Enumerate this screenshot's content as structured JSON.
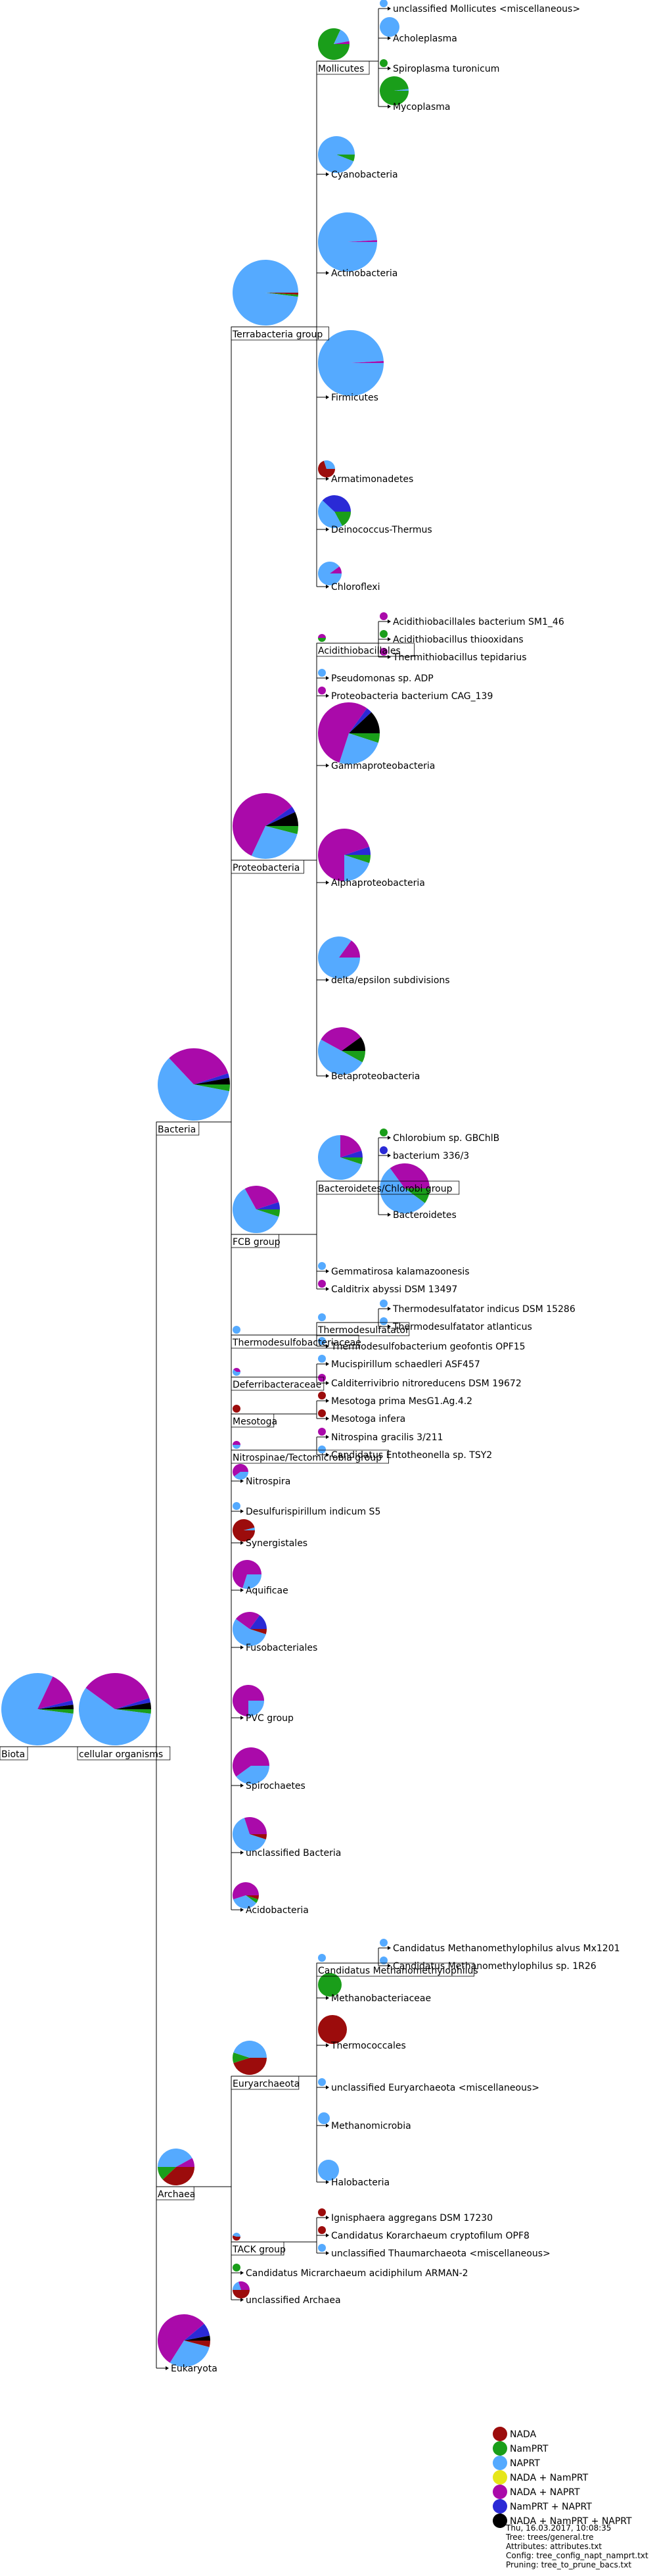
{
  "categories": [
    {
      "key": "nada",
      "name": "NADA",
      "color": "#9c0c0c"
    },
    {
      "key": "namprt",
      "name": "NamPRT",
      "color": "#1a9e1a"
    },
    {
      "key": "naprt",
      "name": "NAPRT",
      "color": "#55aaff"
    },
    {
      "key": "nada_namprt",
      "name": "NADA + NamPRT",
      "color": "#e6e619"
    },
    {
      "key": "nada_naprt",
      "name": "NADA + NAPRT",
      "color": "#aa0aaa"
    },
    {
      "key": "namprt_naprt",
      "name": "NamPRT + NAPRT",
      "color": "#2a2ad6"
    },
    {
      "key": "all3",
      "name": "NADA + NamPRT + NAPRT",
      "color": "#000000"
    }
  ],
  "meta": [
    "Thu, 16.03.2017, 10:08:35",
    "Tree: trees/general.tre",
    "Attributes: attributes.txt",
    "Config: tree_config_napt_namprt.txt",
    "Pruning: tree_to_prune_bacs.txt"
  ],
  "nodes": [
    {
      "id": "biota",
      "label": "Biota",
      "parent": null,
      "row": 2656,
      "depth": 0,
      "share": {
        "naprt": 0.8,
        "nada_naprt": 0.14,
        "namprt": 0.02,
        "namprt_naprt": 0.02,
        "all3": 0.02
      }
    },
    {
      "id": "cellular",
      "label": "cellular organisms",
      "parent": "biota",
      "row": 2656,
      "depth": 1,
      "share": {
        "naprt": 0.58,
        "nada_naprt": 0.35,
        "namprt": 0.02,
        "namprt_naprt": 0.02,
        "all3": 0.03
      }
    },
    {
      "id": "bacteria",
      "label": "Bacteria",
      "parent": "cellular",
      "row": 1706,
      "depth": 2,
      "share": {
        "naprt": 0.6,
        "nada_naprt": 0.32,
        "namprt": 0.03,
        "namprt_naprt": 0.02,
        "all3": 0.03
      }
    },
    {
      "id": "archaea",
      "label": "Archaea",
      "parent": "cellular",
      "row": 3325,
      "depth": 2,
      "share": {
        "nada": 0.38,
        "naprt": 0.42,
        "namprt": 0.12,
        "nada_naprt": 0.08
      }
    },
    {
      "id": "eukaryota",
      "label": "Eukaryota",
      "parent": "cellular",
      "row": 3601,
      "depth": 2,
      "share": {
        "nada_naprt": 0.55,
        "naprt": 0.3,
        "namprt_naprt": 0.08,
        "nada": 0.04,
        "all3": 0.03
      }
    },
    {
      "id": "terrabacteria",
      "label": "Terrabacteria group",
      "parent": "bacteria",
      "row": 497,
      "depth": 3,
      "share": {
        "naprt": 0.98,
        "namprt": 0.01,
        "nada": 0.01
      }
    },
    {
      "id": "proteobacteria",
      "label": "Proteobacteria",
      "parent": "bacteria",
      "row": 1308,
      "depth": 3,
      "share": {
        "nada_naprt": 0.58,
        "naprt": 0.28,
        "all3": 0.07,
        "namprt": 0.04,
        "namprt_naprt": 0.03
      }
    },
    {
      "id": "fcb",
      "label": "FCB group",
      "parent": "bacteria",
      "row": 1877,
      "depth": 3,
      "share": {
        "naprt": 0.62,
        "nada_naprt": 0.28,
        "namprt": 0.05,
        "namprt_naprt": 0.05
      }
    },
    {
      "id": "thermodesulfo",
      "label": "Thermodesulfobacteriaceae",
      "parent": "bacteria",
      "row": 2030,
      "depth": 3,
      "share": {
        "naprt": 1
      }
    },
    {
      "id": "deferribacter",
      "label": "Deferribacteraceae",
      "parent": "bacteria",
      "row": 2094,
      "depth": 3,
      "share": {
        "naprt": 0.6,
        "nada_naprt": 0.4
      }
    },
    {
      "id": "mesotoga",
      "label": "Mesotoga",
      "parent": "bacteria",
      "row": 2150,
      "depth": 3,
      "share": {
        "nada": 1
      }
    },
    {
      "id": "nitrospinae",
      "label": "Nitrospinae/Tectomicrobia group",
      "parent": "bacteria",
      "row": 2205,
      "depth": 3,
      "share": {
        "naprt": 0.5,
        "nada_naprt": 0.5
      }
    },
    {
      "id": "nitrospira",
      "label": "Nitrospira",
      "parent": "bacteria",
      "row": 2252,
      "depth": 3,
      "share": {
        "nada_naprt": 0.6,
        "naprt": 0.4
      }
    },
    {
      "id": "desulfurispirillum",
      "label": "Desulfurispirillum indicum S5",
      "parent": "bacteria",
      "row": 2298,
      "depth": 3,
      "share": {
        "naprt": 1
      }
    },
    {
      "id": "synergistales",
      "label": "Synergistales",
      "parent": "bacteria",
      "row": 2346,
      "depth": 3,
      "share": {
        "nada": 0.96,
        "naprt": 0.04
      }
    },
    {
      "id": "aquificae",
      "label": "Aquificae",
      "parent": "bacteria",
      "row": 2418,
      "depth": 3,
      "share": {
        "nada_naprt": 0.7,
        "naprt": 0.3
      }
    },
    {
      "id": "fusobacteriales",
      "label": "Fusobacteriales",
      "parent": "bacteria",
      "row": 2505,
      "depth": 3,
      "share": {
        "naprt": 0.55,
        "nada_naprt": 0.25,
        "namprt_naprt": 0.15,
        "nada": 0.05
      }
    },
    {
      "id": "pvc",
      "label": "PVC group",
      "parent": "bacteria",
      "row": 2612,
      "depth": 3,
      "share": {
        "nada_naprt": 0.75,
        "naprt": 0.25
      }
    },
    {
      "id": "spirochaetes",
      "label": "Spirochaetes",
      "parent": "bacteria",
      "row": 2715,
      "depth": 3,
      "share": {
        "nada_naprt": 0.6,
        "naprt": 0.4
      }
    },
    {
      "id": "unclassified_bact",
      "label": "unclassified Bacteria",
      "parent": "bacteria",
      "row": 2817,
      "depth": 3,
      "share": {
        "naprt": 0.65,
        "nada_naprt": 0.3,
        "nada": 0.05
      }
    },
    {
      "id": "acidobacteria",
      "label": "Acidobacteria",
      "parent": "bacteria",
      "row": 2904,
      "depth": 3,
      "share": {
        "nada_naprt": 0.55,
        "naprt": 0.35,
        "namprt": 0.05,
        "nada": 0.05
      }
    },
    {
      "id": "mollicutes",
      "label": "Mollicutes",
      "parent": "terrabacteria",
      "row": 93,
      "depth": 4,
      "share": {
        "namprt": 0.82,
        "naprt": 0.15,
        "nada_naprt": 0.03
      }
    },
    {
      "id": "cyanobacteria",
      "label": "Cyanobacteria",
      "parent": "terrabacteria",
      "row": 265,
      "depth": 4,
      "share": {
        "naprt": 0.94,
        "namprt": 0.06
      }
    },
    {
      "id": "actinobacteria",
      "label": "Actinobacteria",
      "parent": "terrabacteria",
      "row": 415,
      "depth": 4,
      "share": {
        "naprt": 0.99,
        "nada_naprt": 0.01
      }
    },
    {
      "id": "firmicutes",
      "label": "Firmicutes",
      "parent": "terrabacteria",
      "row": 604,
      "depth": 4,
      "share": {
        "naprt": 0.99,
        "nada_naprt": 0.01
      }
    },
    {
      "id": "armatimonadetes",
      "label": "Armatimonadetes",
      "parent": "terrabacteria",
      "row": 728,
      "depth": 4,
      "share": {
        "nada": 0.7,
        "naprt": 0.3
      }
    },
    {
      "id": "deinococcus",
      "label": "Deinococcus-Thermus",
      "parent": "terrabacteria",
      "row": 805,
      "depth": 4,
      "share": {
        "naprt": 0.45,
        "namprt_naprt": 0.38,
        "namprt": 0.17
      }
    },
    {
      "id": "chloroflexi",
      "label": "Chloroflexi",
      "parent": "terrabacteria",
      "row": 892,
      "depth": 4,
      "share": {
        "naprt": 0.9,
        "nada_naprt": 0.1
      }
    },
    {
      "id": "unclass_mollicutes",
      "label": "unclassified Mollicutes <miscellaneous>",
      "parent": "mollicutes",
      "row": 13,
      "depth": 5,
      "share": {
        "naprt": 1
      }
    },
    {
      "id": "acholeplasma",
      "label": "Acholeplasma",
      "parent": "mollicutes",
      "row": 58,
      "depth": 5,
      "share": {
        "naprt": 1
      }
    },
    {
      "id": "spiroplasma",
      "label": "Spiroplasma turonicum",
      "parent": "mollicutes",
      "row": 104,
      "depth": 5,
      "share": {
        "namprt": 1
      }
    },
    {
      "id": "mycoplasma",
      "label": "Mycoplasma",
      "parent": "mollicutes",
      "row": 162,
      "depth": 5,
      "share": {
        "namprt": 0.98,
        "naprt": 0.02
      }
    },
    {
      "id": "acidithiobacillales",
      "label": "Acidithiobacillales",
      "parent": "proteobacteria",
      "row": 978,
      "depth": 4,
      "share": {
        "nada_naprt": 0.5,
        "namprt": 0.5
      }
    },
    {
      "id": "pseudomonas",
      "label": "Pseudomonas sp. ADP",
      "parent": "proteobacteria",
      "row": 1031,
      "depth": 4,
      "share": {
        "naprt": 1
      }
    },
    {
      "id": "proteo_cag",
      "label": "Proteobacteria bacterium CAG_139",
      "parent": "proteobacteria",
      "row": 1058,
      "depth": 4,
      "share": {
        "nada_naprt": 1
      }
    },
    {
      "id": "gamma",
      "label": "Gammaproteobacteria",
      "parent": "proteobacteria",
      "row": 1164,
      "depth": 4,
      "share": {
        "nada_naprt": 0.55,
        "naprt": 0.25,
        "all3": 0.12,
        "namprt": 0.05,
        "namprt_naprt": 0.03
      }
    },
    {
      "id": "alpha",
      "label": "Alphaproteobacteria",
      "parent": "proteobacteria",
      "row": 1342,
      "depth": 4,
      "share": {
        "nada_naprt": 0.7,
        "naprt": 0.2,
        "namprt_naprt": 0.05,
        "namprt": 0.05
      }
    },
    {
      "id": "delta",
      "label": "delta/epsilon subdivisions",
      "parent": "proteobacteria",
      "row": 1490,
      "depth": 4,
      "share": {
        "naprt": 0.85,
        "nada_naprt": 0.15
      }
    },
    {
      "id": "beta",
      "label": "Betaproteobacteria",
      "parent": "proteobacteria",
      "row": 1636,
      "depth": 4,
      "share": {
        "naprt": 0.5,
        "nada_naprt": 0.32,
        "all3": 0.1,
        "namprt": 0.08
      }
    },
    {
      "id": "acidi_sm1",
      "label": "Acidithiobacillales bacterium SM1_46",
      "parent": "acidithiobacillales",
      "row": 945,
      "depth": 5,
      "share": {
        "nada_naprt": 1
      }
    },
    {
      "id": "acidi_thio",
      "label": "Acidithiobacillus thiooxidans",
      "parent": "acidithiobacillales",
      "row": 972,
      "depth": 5,
      "share": {
        "namprt": 1
      }
    },
    {
      "id": "thermithio",
      "label": "Thermithiobacillus tepidarius",
      "parent": "acidithiobacillales",
      "row": 999,
      "depth": 5,
      "share": {
        "nada_naprt": 1
      }
    },
    {
      "id": "bacteroidetes_chlorobi",
      "label": "Bacteroidetes/Chlorobi group",
      "parent": "fcb",
      "row": 1796,
      "depth": 4,
      "share": {
        "naprt": 0.7,
        "nada_naprt": 0.2,
        "namprt": 0.05,
        "namprt_naprt": 0.05
      }
    },
    {
      "id": "gemmatirosa",
      "label": "Gemmatirosa kalamazoonesis",
      "parent": "fcb",
      "row": 1933,
      "depth": 4,
      "share": {
        "naprt": 1
      }
    },
    {
      "id": "calditrix",
      "label": "Calditrix abyssi DSM 13497",
      "parent": "fcb",
      "row": 1960,
      "depth": 4,
      "share": {
        "nada_naprt": 1
      }
    },
    {
      "id": "chlorobium",
      "label": "Chlorobium sp. GBChlB",
      "parent": "bacteroidetes_chlorobi",
      "row": 1730,
      "depth": 5,
      "share": {
        "namprt": 1
      }
    },
    {
      "id": "bacterium336",
      "label": "bacterium 336/3",
      "parent": "bacteroidetes_chlorobi",
      "row": 1757,
      "depth": 5,
      "share": {
        "namprt_naprt": 1
      }
    },
    {
      "id": "bacteroidetes",
      "label": "Bacteroidetes",
      "parent": "bacteroidetes_chlorobi",
      "row": 1847,
      "depth": 5,
      "share": {
        "naprt": 0.55,
        "nada_naprt": 0.35,
        "namprt": 0.1
      }
    },
    {
      "id": "thermodesulfatator",
      "label": "Thermodesulfatator",
      "parent": "thermodesulfo",
      "row": 2011,
      "depth": 4,
      "share": {
        "naprt": 1
      }
    },
    {
      "id": "thermodesulfobact_geo",
      "label": "Thermodesulfobacterium geofontis OPF15",
      "parent": "thermodesulfo",
      "row": 2047,
      "depth": 4,
      "share": {
        "naprt": 1
      }
    },
    {
      "id": "td_indicus",
      "label": "Thermodesulfatator indicus DSM 15286",
      "parent": "thermodesulfatator",
      "row": 1990,
      "depth": 5,
      "share": {
        "naprt": 1
      }
    },
    {
      "id": "td_atlanticus",
      "label": "Thermodesulfatator atlanticus",
      "parent": "thermodesulfatator",
      "row": 2017,
      "depth": 5,
      "share": {
        "naprt": 1
      }
    },
    {
      "id": "mucispirillum",
      "label": "Mucispirillum schaedleri ASF457",
      "parent": "deferribacter",
      "row": 2074,
      "depth": 4,
      "share": {
        "naprt": 1
      }
    },
    {
      "id": "calditerrivibrio",
      "label": "Calditerrivibrio nitroreducens DSM 19672",
      "parent": "deferribacter",
      "row": 2103,
      "depth": 4,
      "share": {
        "nada_naprt": 1
      }
    },
    {
      "id": "mesotoga_prima",
      "label": "Mesotoga prima MesG1.Ag.4.2",
      "parent": "mesotoga",
      "row": 2130,
      "depth": 4,
      "share": {
        "nada": 1
      }
    },
    {
      "id": "mesotoga_infera",
      "label": "Mesotoga infera",
      "parent": "mesotoga",
      "row": 2157,
      "depth": 4,
      "share": {
        "nada": 1
      }
    },
    {
      "id": "nitrospina",
      "label": "Nitrospina gracilis 3/211",
      "parent": "nitrospinae",
      "row": 2185,
      "depth": 4,
      "share": {
        "nada_naprt": 1
      }
    },
    {
      "id": "entotheonella",
      "label": "Candidatus Entotheonella sp. TSY2",
      "parent": "nitrospinae",
      "row": 2212,
      "depth": 4,
      "share": {
        "naprt": 1
      }
    },
    {
      "id": "euryarchaeota",
      "label": "Euryarchaeota",
      "parent": "archaea",
      "row": 3157,
      "depth": 3,
      "share": {
        "nada": 0.45,
        "naprt": 0.45,
        "namprt": 0.1
      }
    },
    {
      "id": "tack",
      "label": "TACK group",
      "parent": "archaea",
      "row": 3409,
      "depth": 3,
      "share": {
        "nada": 0.55,
        "naprt": 0.45
      }
    },
    {
      "id": "micrarchaeum",
      "label": "Candidatus Micrarchaeum acidiphilum ARMAN-2",
      "parent": "archaea",
      "row": 3456,
      "depth": 3,
      "share": {
        "namprt": 1
      }
    },
    {
      "id": "unclass_archaea",
      "label": "unclassified Archaea",
      "parent": "archaea",
      "row": 3497,
      "depth": 3,
      "share": {
        "nada": 0.5,
        "nada_naprt": 0.3,
        "naprt": 0.2
      }
    },
    {
      "id": "cand_methanomethylophilus",
      "label": "Candidatus Methanomethylophilus",
      "parent": "euryarchaeota",
      "row": 2985,
      "depth": 4,
      "share": {
        "naprt": 1
      }
    },
    {
      "id": "methanobacteriaceae",
      "label": "Methanobacteriaceae",
      "parent": "euryarchaeota",
      "row": 3038,
      "depth": 4,
      "share": {
        "namprt": 1
      }
    },
    {
      "id": "thermococcales",
      "label": "Thermococcales",
      "parent": "euryarchaeota",
      "row": 3110,
      "depth": 4,
      "share": {
        "nada": 1
      }
    },
    {
      "id": "unclass_eury",
      "label": "unclassified Euryarchaeota <miscellaneous>",
      "parent": "euryarchaeota",
      "row": 3174,
      "depth": 4,
      "share": {
        "naprt": 1
      }
    },
    {
      "id": "methanomicrobia",
      "label": "Methanomicrobia",
      "parent": "euryarchaeota",
      "row": 3232,
      "depth": 4,
      "share": {
        "naprt": 1
      }
    },
    {
      "id": "halobacteria",
      "label": "Halobacteria",
      "parent": "euryarchaeota",
      "row": 3318,
      "depth": 4,
      "share": {
        "naprt": 1
      }
    },
    {
      "id": "cm_alvus",
      "label": "Candidatus Methanomethylophilus alvus Mx1201",
      "parent": "cand_methanomethylophilus",
      "row": 2962,
      "depth": 5,
      "share": {
        "naprt": 1
      }
    },
    {
      "id": "cm_1r26",
      "label": "Candidatus Methanomethylophilus sp. 1R26",
      "parent": "cand_methanomethylophilus",
      "row": 2989,
      "depth": 5,
      "share": {
        "naprt": 1
      }
    },
    {
      "id": "ignisphaera",
      "label": "Ignisphaera aggregans DSM 17230",
      "parent": "tack",
      "row": 3372,
      "depth": 4,
      "share": {
        "nada": 1
      }
    },
    {
      "id": "korarchaeum",
      "label": "Candidatus Korarchaeum cryptofilum OPF8",
      "parent": "tack",
      "row": 3399,
      "depth": 4,
      "share": {
        "nada": 1
      }
    },
    {
      "id": "unclass_thaum",
      "label": "unclassified Thaumarchaeota <miscellaneous>",
      "parent": "tack",
      "row": 3426,
      "depth": 4,
      "share": {
        "naprt": 1
      }
    }
  ]
}
